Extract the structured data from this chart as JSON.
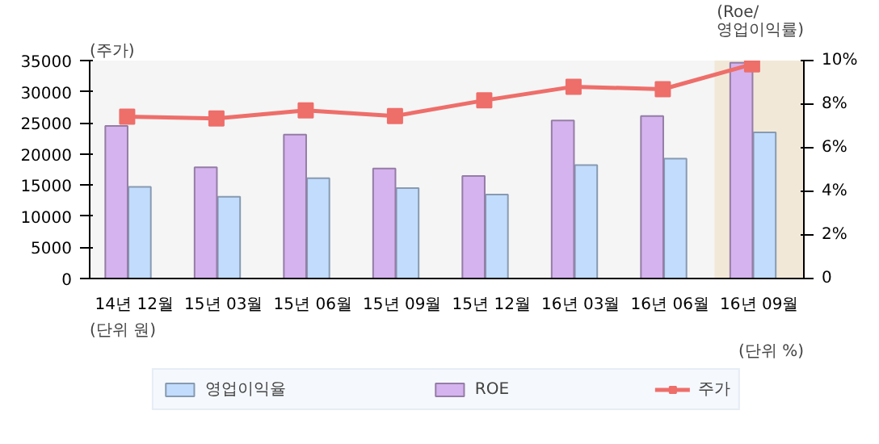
{
  "chart_data": {
    "type": "bar",
    "categories": [
      "14년 12월",
      "15년 03월",
      "15년 06월",
      "15년 09월",
      "15년 12월",
      "16년 03월",
      "16년 06월",
      "16년 09월"
    ],
    "series": [
      {
        "name": "영업이익율",
        "axis": "y2",
        "color": "#c2dcfd",
        "values": [
          4.2,
          3.75,
          4.6,
          4.15,
          3.85,
          5.2,
          5.5,
          6.7
        ]
      },
      {
        "name": "ROE",
        "axis": "y2",
        "color": "#d5b3ee",
        "values": [
          7.0,
          5.1,
          6.6,
          5.05,
          4.7,
          7.25,
          7.45,
          9.9
        ]
      },
      {
        "name": "주가",
        "type": "line",
        "color": "#ee6e6a",
        "values": [
          26000,
          25700,
          27000,
          26100,
          28600,
          30800,
          30400,
          34400
        ]
      }
    ],
    "ylabel": "(주가)",
    "y2label": "(Roe/\n영업이익률)",
    "ylim": [
      0,
      35000
    ],
    "yticks": [
      0,
      5000,
      10000,
      15000,
      20000,
      25000,
      30000,
      35000
    ],
    "y2lim": [
      0,
      10
    ],
    "y2ticks": [
      0,
      {
        "value": 2,
        "label": "2%"
      },
      {
        "value": 4,
        "label": "4%"
      },
      {
        "value": 6,
        "label": "6%"
      },
      {
        "value": 8,
        "label": "8%"
      },
      {
        "value": 10,
        "label": "10%"
      }
    ],
    "bands": [
      {
        "axis": "x",
        "from": "16년 09월",
        "to": "16년 09월",
        "color": "#f2e8d8"
      }
    ],
    "annotations": [
      "(단위 원)",
      "(단위 %)"
    ],
    "marker": "square",
    "line_style": "solid",
    "grid": false,
    "legend": "bottom"
  }
}
